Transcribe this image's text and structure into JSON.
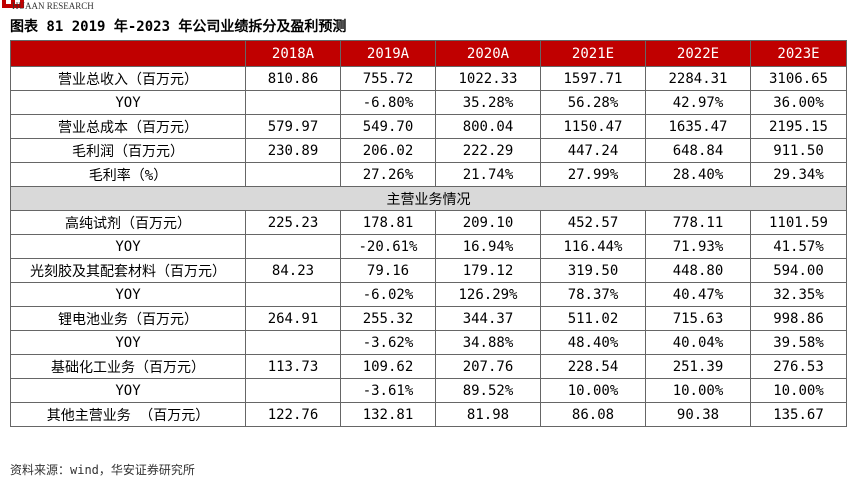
{
  "header": {
    "logo_text": "HUAAN RESEARCH",
    "title": "图表 81 2019 年-2023 年公司业绩拆分及盈利预测"
  },
  "table": {
    "columns": [
      "2018A",
      "2019A",
      "2020A",
      "2021E",
      "2022E",
      "2023E"
    ],
    "rows": [
      [
        "营业总收入（百万元）",
        "810.86",
        "755.72",
        "1022.33",
        "1597.71",
        "2284.31",
        "3106.65"
      ],
      [
        "YOY",
        null,
        "-6.80%",
        "35.28%",
        "56.28%",
        "42.97%",
        "36.00%"
      ],
      [
        "营业总成本（百万元）",
        "579.97",
        "549.70",
        "800.04",
        "1150.47",
        "1635.47",
        "2195.15"
      ],
      [
        "毛利润（百万元）",
        "230.89",
        "206.02",
        "222.29",
        "447.24",
        "648.84",
        "911.50"
      ],
      [
        "毛利率（%）",
        null,
        "27.26%",
        "21.74%",
        "27.99%",
        "28.40%",
        "29.34%"
      ],
      [
        "主营业务情况"
      ],
      [
        "高纯试剂（百万元）",
        "225.23",
        "178.81",
        "209.10",
        "452.57",
        "778.11",
        "1101.59"
      ],
      [
        "YOY",
        null,
        "-20.61%",
        "16.94%",
        "116.44%",
        "71.93%",
        "41.57%"
      ],
      [
        "光刻胶及其配套材料（百万元）",
        "84.23",
        "79.16",
        "179.12",
        "319.50",
        "448.80",
        "594.00"
      ],
      [
        "YOY",
        null,
        "-6.02%",
        "126.29%",
        "78.37%",
        "40.47%",
        "32.35%"
      ],
      [
        "锂电池业务（百万元）",
        "264.91",
        "255.32",
        "344.37",
        "511.02",
        "715.63",
        "998.86"
      ],
      [
        "YOY",
        null,
        "-3.62%",
        "34.88%",
        "48.40%",
        "40.04%",
        "39.58%"
      ],
      [
        "基础化工业务（百万元）",
        "113.73",
        "109.62",
        "207.76",
        "228.54",
        "251.39",
        "276.53"
      ],
      [
        "YOY",
        null,
        "-3.61%",
        "89.52%",
        "10.00%",
        "10.00%",
        "10.00%"
      ],
      [
        "其他主营业务 （百万元）",
        "122.76",
        "132.81",
        "81.98",
        "86.08",
        "90.38",
        "135.67"
      ]
    ]
  },
  "source": "资料来源：wind，华安证券研究所"
}
